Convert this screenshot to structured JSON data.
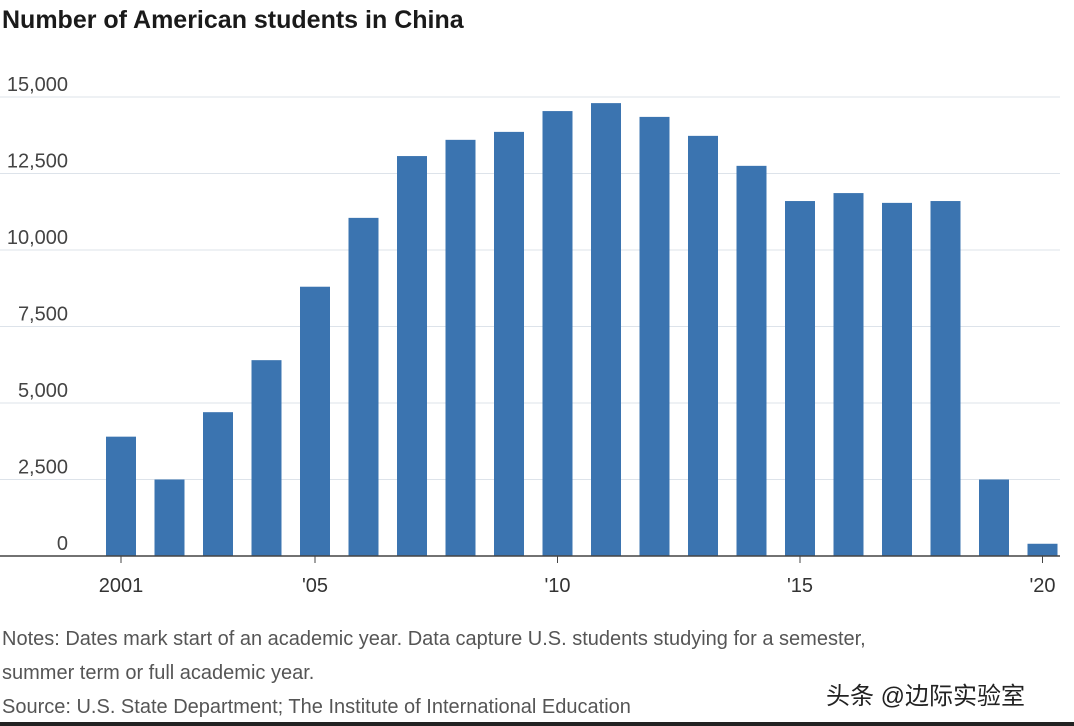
{
  "chart_data": {
    "type": "bar",
    "title": "Number of American students in China",
    "xlabel": "",
    "ylabel": "",
    "ylim": [
      0,
      15000
    ],
    "grid": true,
    "categories": [
      "2001",
      "2002",
      "2003",
      "2004",
      "2005",
      "2006",
      "2007",
      "2008",
      "2009",
      "2010",
      "2011",
      "2012",
      "2013",
      "2014",
      "2015",
      "2016",
      "2017",
      "2018",
      "2019",
      "2020"
    ],
    "values": [
      3900,
      2500,
      4700,
      6400,
      8800,
      11050,
      13070,
      13600,
      13860,
      14540,
      14800,
      14350,
      13730,
      12750,
      11600,
      11860,
      11540,
      11600,
      2500,
      400
    ],
    "x_tick_labels": [
      {
        "index": 0,
        "label": "2001"
      },
      {
        "index": 4,
        "label": "'05"
      },
      {
        "index": 9,
        "label": "'10"
      },
      {
        "index": 14,
        "label": "'15"
      },
      {
        "index": 19,
        "label": "'20"
      }
    ],
    "y_ticks": [
      {
        "value": 0,
        "label": "0"
      },
      {
        "value": 2500,
        "label": "2,500"
      },
      {
        "value": 5000,
        "label": "5,000"
      },
      {
        "value": 7500,
        "label": "7,500"
      },
      {
        "value": 10000,
        "label": "10,000"
      },
      {
        "value": 12500,
        "label": "12,500"
      },
      {
        "value": 15000,
        "label": "15,000"
      }
    ],
    "bar_color": "#3b74b0"
  },
  "notes": {
    "line1": "Notes: Dates mark start of an academic year. Data capture U.S. students studying for a semester,",
    "line2": "summer term or full academic year.",
    "source": "Source: U.S. State Department; The Institute of International Education"
  },
  "watermark": "头条 @边际实验室"
}
